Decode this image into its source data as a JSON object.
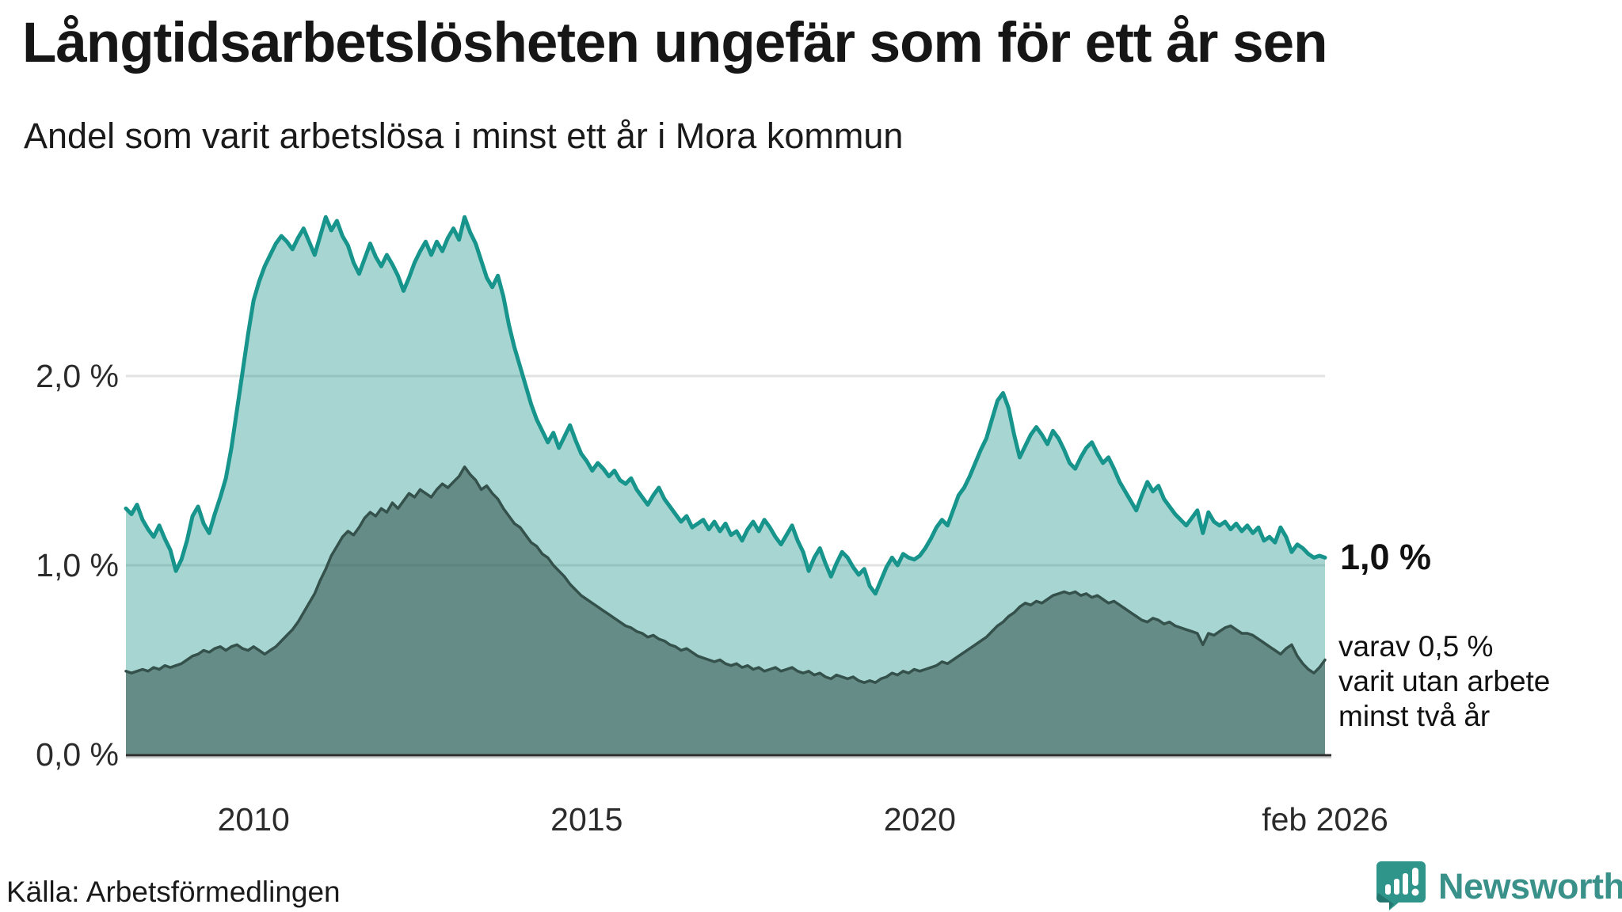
{
  "header": {
    "title": "Långtidsarbetslösheten ungefär som för ett år sen",
    "subtitle": "Andel som varit arbetslösa i minst ett år i Mora kommun"
  },
  "chart_data": {
    "type": "area",
    "title": "Långtidsarbetslösheten ungefär som för ett år sen",
    "subtitle": "Andel som varit arbetslösa i minst ett år i Mora kommun",
    "unit": "%",
    "x_axis": {
      "range_decimal_years": [
        2008.0833,
        2026.0833
      ],
      "ticks": [
        {
          "label": "2010",
          "t": 2010.0
        },
        {
          "label": "2015",
          "t": 2015.0
        },
        {
          "label": "2020",
          "t": 2020.0
        },
        {
          "label": "feb 2026",
          "t": 2026.0833
        }
      ]
    },
    "y_axis": {
      "range": [
        0,
        2.95
      ],
      "grid": true,
      "ticks": [
        {
          "label": "0,0 %",
          "value": 0
        },
        {
          "label": "1,0 %",
          "value": 1
        },
        {
          "label": "2,0 %",
          "value": 2
        }
      ]
    },
    "series": [
      {
        "name": "Andel arbetslösa minst ett år",
        "color_line": "#17948b",
        "color_fill": "rgba(23,148,138,0.38)",
        "line_width": 5,
        "start_decimal_year": 2008.0833,
        "step_months": 1,
        "values": [
          1.3,
          1.27,
          1.32,
          1.24,
          1.19,
          1.15,
          1.21,
          1.14,
          1.08,
          0.97,
          1.03,
          1.13,
          1.26,
          1.31,
          1.22,
          1.17,
          1.27,
          1.36,
          1.46,
          1.62,
          1.82,
          2.02,
          2.22,
          2.4,
          2.5,
          2.58,
          2.64,
          2.7,
          2.74,
          2.71,
          2.67,
          2.73,
          2.78,
          2.71,
          2.64,
          2.74,
          2.84,
          2.77,
          2.82,
          2.74,
          2.69,
          2.6,
          2.54,
          2.62,
          2.7,
          2.63,
          2.58,
          2.64,
          2.59,
          2.53,
          2.45,
          2.52,
          2.6,
          2.66,
          2.71,
          2.64,
          2.71,
          2.66,
          2.73,
          2.78,
          2.72,
          2.84,
          2.76,
          2.7,
          2.61,
          2.52,
          2.47,
          2.53,
          2.42,
          2.27,
          2.15,
          2.05,
          1.95,
          1.85,
          1.77,
          1.71,
          1.65,
          1.7,
          1.62,
          1.68,
          1.74,
          1.66,
          1.59,
          1.55,
          1.5,
          1.54,
          1.51,
          1.47,
          1.5,
          1.45,
          1.43,
          1.46,
          1.4,
          1.36,
          1.32,
          1.37,
          1.41,
          1.35,
          1.31,
          1.27,
          1.23,
          1.26,
          1.2,
          1.22,
          1.24,
          1.19,
          1.23,
          1.18,
          1.22,
          1.16,
          1.18,
          1.13,
          1.19,
          1.23,
          1.18,
          1.24,
          1.2,
          1.15,
          1.11,
          1.16,
          1.21,
          1.13,
          1.07,
          0.97,
          1.04,
          1.09,
          1.01,
          0.94,
          1.01,
          1.07,
          1.04,
          0.99,
          0.95,
          0.98,
          0.89,
          0.85,
          0.92,
          0.99,
          1.04,
          1.0,
          1.06,
          1.04,
          1.03,
          1.05,
          1.09,
          1.14,
          1.2,
          1.24,
          1.21,
          1.29,
          1.37,
          1.41,
          1.47,
          1.54,
          1.61,
          1.67,
          1.77,
          1.87,
          1.91,
          1.83,
          1.69,
          1.57,
          1.63,
          1.69,
          1.73,
          1.69,
          1.64,
          1.71,
          1.67,
          1.61,
          1.54,
          1.51,
          1.57,
          1.62,
          1.65,
          1.59,
          1.54,
          1.57,
          1.51,
          1.44,
          1.39,
          1.34,
          1.29,
          1.37,
          1.44,
          1.39,
          1.42,
          1.35,
          1.31,
          1.27,
          1.24,
          1.21,
          1.25,
          1.29,
          1.17,
          1.28,
          1.23,
          1.21,
          1.23,
          1.19,
          1.22,
          1.18,
          1.21,
          1.17,
          1.2,
          1.13,
          1.15,
          1.12,
          1.2,
          1.15,
          1.07,
          1.11,
          1.09,
          1.06,
          1.04,
          1.05,
          1.04
        ]
      },
      {
        "name": "varav utan arbete minst två år",
        "color_line": "#35514c",
        "color_fill": "rgba(42,72,67,0.52)",
        "line_width": 3.5,
        "start_decimal_year": 2008.0833,
        "step_months": 1,
        "values": [
          0.44,
          0.43,
          0.44,
          0.45,
          0.44,
          0.46,
          0.45,
          0.47,
          0.46,
          0.47,
          0.48,
          0.5,
          0.52,
          0.53,
          0.55,
          0.54,
          0.56,
          0.57,
          0.55,
          0.57,
          0.58,
          0.56,
          0.55,
          0.57,
          0.55,
          0.53,
          0.55,
          0.57,
          0.6,
          0.63,
          0.66,
          0.7,
          0.75,
          0.8,
          0.85,
          0.92,
          0.98,
          1.05,
          1.1,
          1.15,
          1.18,
          1.16,
          1.2,
          1.25,
          1.28,
          1.26,
          1.3,
          1.28,
          1.33,
          1.3,
          1.34,
          1.38,
          1.36,
          1.4,
          1.38,
          1.36,
          1.4,
          1.43,
          1.41,
          1.44,
          1.47,
          1.52,
          1.48,
          1.45,
          1.4,
          1.42,
          1.38,
          1.35,
          1.3,
          1.26,
          1.22,
          1.2,
          1.16,
          1.12,
          1.1,
          1.06,
          1.04,
          1.0,
          0.97,
          0.94,
          0.9,
          0.87,
          0.84,
          0.82,
          0.8,
          0.78,
          0.76,
          0.74,
          0.72,
          0.7,
          0.68,
          0.67,
          0.65,
          0.64,
          0.62,
          0.63,
          0.61,
          0.6,
          0.58,
          0.57,
          0.55,
          0.56,
          0.54,
          0.52,
          0.51,
          0.5,
          0.49,
          0.5,
          0.48,
          0.47,
          0.48,
          0.46,
          0.47,
          0.45,
          0.46,
          0.44,
          0.45,
          0.46,
          0.44,
          0.45,
          0.46,
          0.44,
          0.43,
          0.44,
          0.42,
          0.43,
          0.41,
          0.4,
          0.42,
          0.41,
          0.4,
          0.41,
          0.39,
          0.38,
          0.39,
          0.38,
          0.4,
          0.41,
          0.43,
          0.42,
          0.44,
          0.43,
          0.45,
          0.44,
          0.45,
          0.46,
          0.47,
          0.49,
          0.48,
          0.5,
          0.52,
          0.54,
          0.56,
          0.58,
          0.6,
          0.62,
          0.65,
          0.68,
          0.7,
          0.73,
          0.75,
          0.78,
          0.8,
          0.79,
          0.81,
          0.8,
          0.82,
          0.84,
          0.85,
          0.86,
          0.85,
          0.86,
          0.84,
          0.85,
          0.83,
          0.84,
          0.82,
          0.8,
          0.81,
          0.79,
          0.77,
          0.75,
          0.73,
          0.71,
          0.7,
          0.72,
          0.71,
          0.69,
          0.7,
          0.68,
          0.67,
          0.66,
          0.65,
          0.64,
          0.58,
          0.64,
          0.63,
          0.65,
          0.67,
          0.68,
          0.66,
          0.64,
          0.64,
          0.63,
          0.61,
          0.59,
          0.57,
          0.55,
          0.53,
          0.56,
          0.58,
          0.52,
          0.48,
          0.45,
          0.43,
          0.46,
          0.5
        ]
      }
    ],
    "annotations": {
      "end_value_label": "1,0 %",
      "secondary_lines": [
        "varav 0,5 %",
        "varit utan arbete",
        "minst två år"
      ]
    },
    "colors": {
      "grid": "#e2e2e2",
      "baseline": "#2e2e2e",
      "baseline_shadow": "#cccccc"
    }
  },
  "footer": {
    "source": "Källa: Arbetsförmedlingen",
    "brand": "Newsworthy",
    "brand_color": "#39918a"
  }
}
